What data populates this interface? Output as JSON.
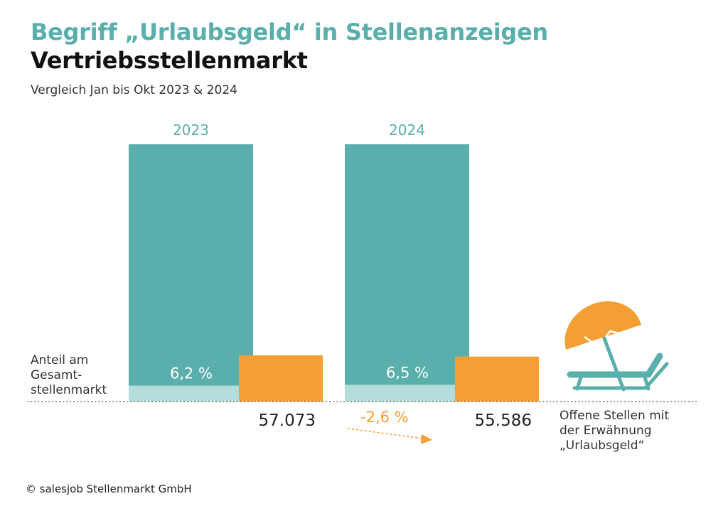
{
  "header": {
    "title": "Begriff „Urlaubsgeld“ in Stellenanzeigen",
    "subtitle": "Vertriebsstellenmarkt",
    "caption": "Vergleich Jan bis Okt 2023 & 2024"
  },
  "chart_data": {
    "type": "bar",
    "categories": [
      "2023",
      "2024"
    ],
    "share_label": "Anteil am\nGesamt-\nstellenmarkt",
    "shares": [
      6.2,
      6.5
    ],
    "share_labels": [
      "6,2 %",
      "6,5 %"
    ],
    "counts": [
      57073,
      55586
    ],
    "count_labels": [
      "57.073",
      "55.586"
    ],
    "change_label": "-2,6 %",
    "series_label": "Offene Stellen mit\nder Erwähnung\n„Urlaubsgeld“",
    "colors": {
      "total": "#5aafad",
      "share": "#b4dcda",
      "count": "#f39f33",
      "year_label": "#5aafad",
      "change": "#f39f33",
      "icon": "#5aafad",
      "umbrella": "#f39f33"
    }
  },
  "footer": {
    "copyright": "© salesjob Stellenmarkt GmbH"
  }
}
